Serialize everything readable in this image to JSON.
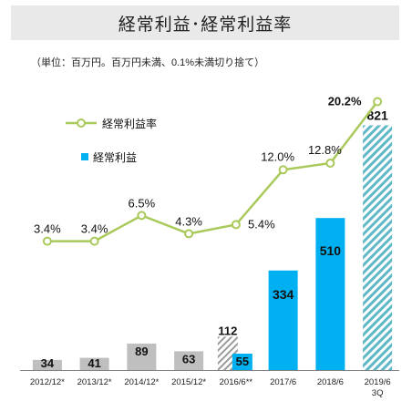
{
  "header": {
    "title": "経常利益･経常利益率"
  },
  "note": "（単位：百万円。百万円未満、0.1%未満切り捨て）",
  "legend": {
    "rate_label": "経常利益率",
    "profit_label": "経常利益",
    "position": "upper-left"
  },
  "colors": {
    "gray_bar": "#bfbfbf",
    "blue_bar": "#00b0f0",
    "hatch_blue": "#5fb8c8",
    "line": "#a9c95a",
    "axis": "#808080"
  },
  "chart_data": {
    "type": "bar+line",
    "categories": [
      "2012/12*",
      "2013/12*",
      "2014/12*",
      "2015/12*",
      "2016/6**",
      "2017/6",
      "2018/6",
      "2019/6\n3Q"
    ],
    "series": [
      {
        "name": "経常利益",
        "type": "bar",
        "values": [
          34,
          41,
          89,
          63,
          55,
          334,
          510,
          821
        ],
        "labels": [
          "34",
          "41",
          "89",
          "63",
          "55",
          "334",
          "510",
          "821"
        ],
        "styles": [
          "gray",
          "gray",
          "gray",
          "gray",
          "blue",
          "blue",
          "blue",
          "hatched-blue"
        ]
      },
      {
        "name": "経常利益率",
        "type": "line",
        "values": [
          3.4,
          3.4,
          6.5,
          4.3,
          5.4,
          12.0,
          12.8,
          20.2
        ],
        "labels": [
          "3.4%",
          "3.4%",
          "6.5%",
          "4.3%",
          "5.4%",
          "12.0%",
          "12.8%",
          "20.2%"
        ]
      }
    ],
    "extra_bar": {
      "category": "2016/6**",
      "value": 112,
      "label": "112",
      "style": "hatched-gray"
    },
    "bar_ylim": [
      0,
      850
    ],
    "line_ylim": [
      -12,
      23
    ],
    "grid": false
  }
}
